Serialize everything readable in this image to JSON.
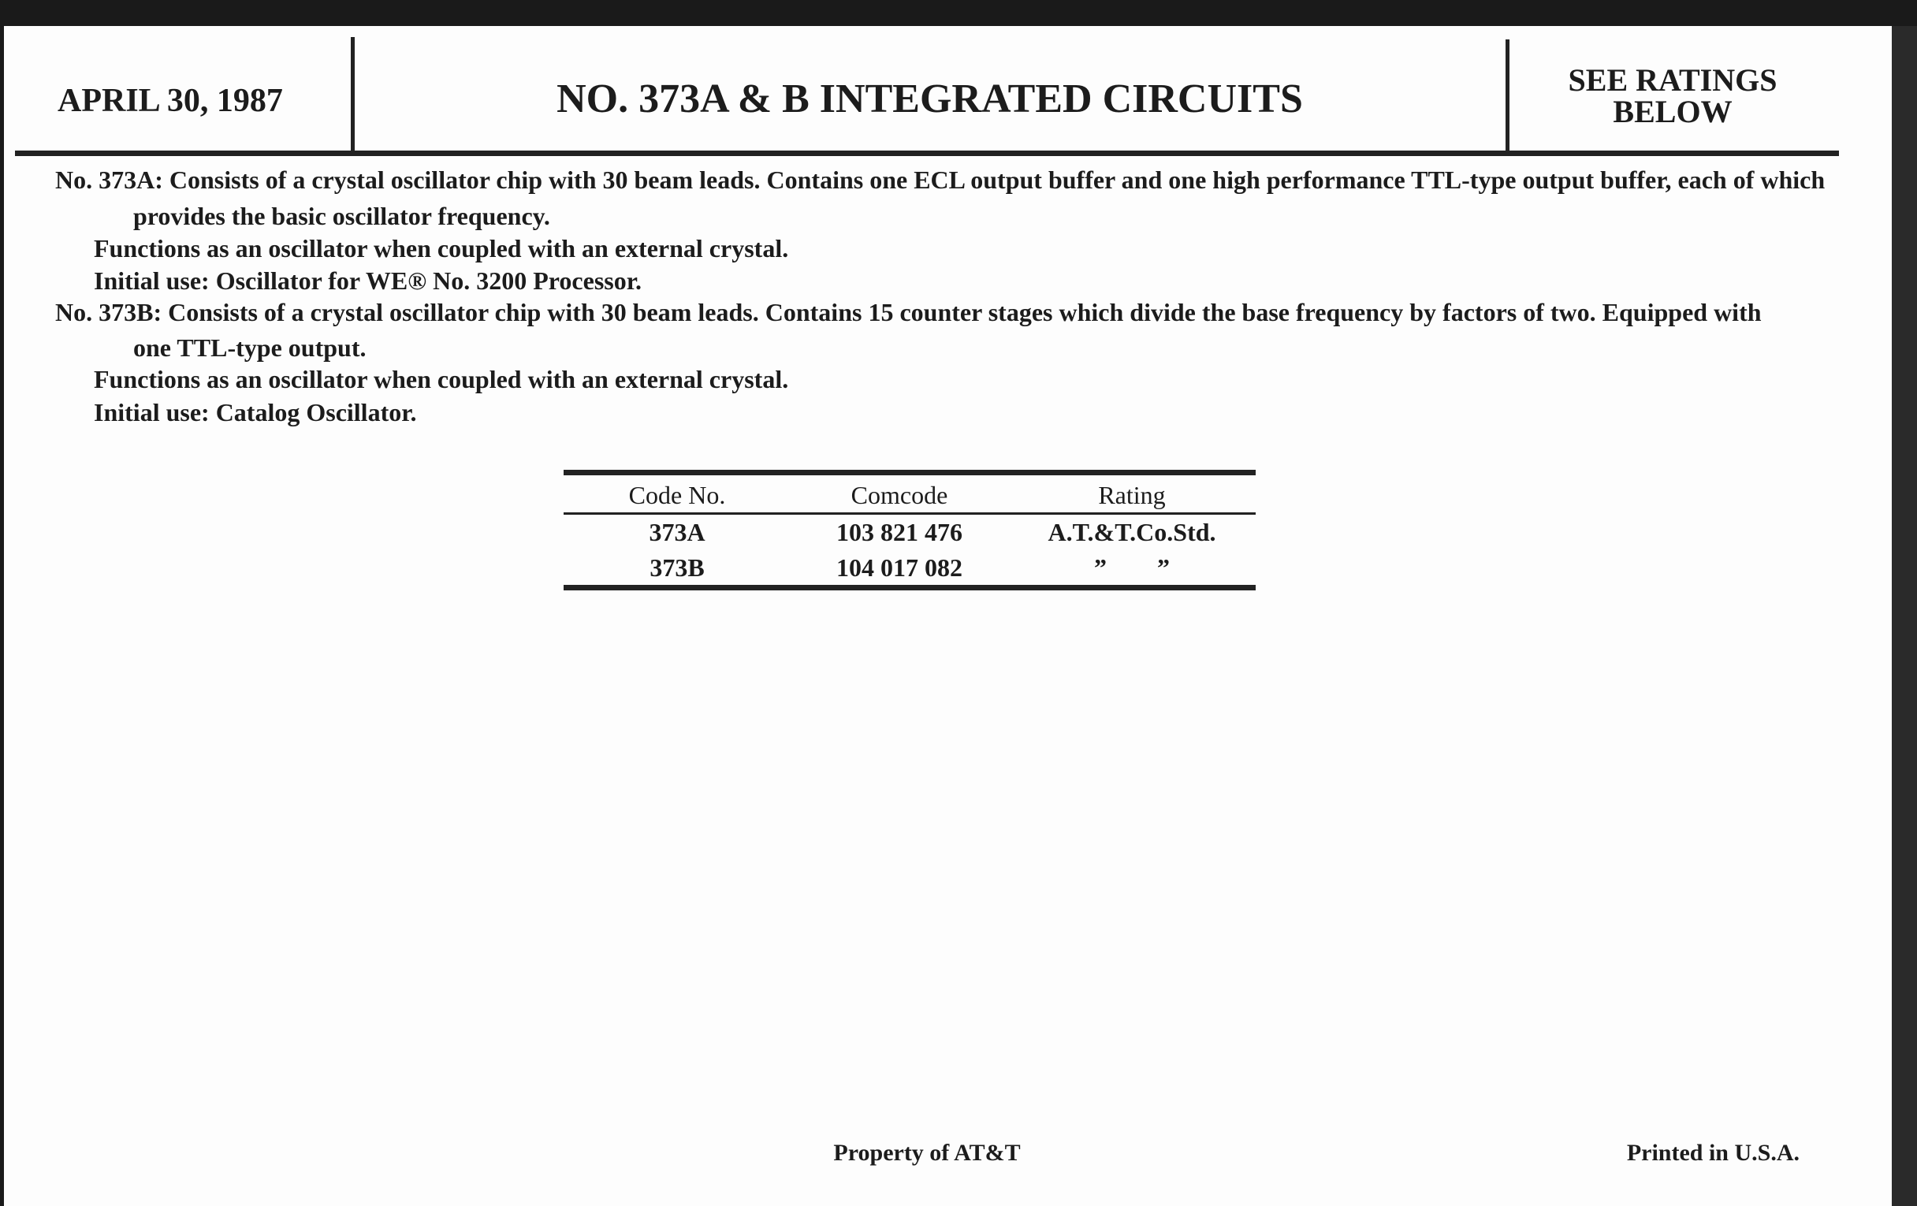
{
  "header": {
    "date": "APRIL 30, 1987",
    "title": "NO. 373A & B INTEGRATED CIRCUITS",
    "ratings_note_line1": "SEE RATINGS",
    "ratings_note_line2": "BELOW"
  },
  "body": {
    "lines": [
      "No. 373A: Consists of a crystal oscillator chip with 30 beam leads. Contains one ECL output buffer and one high performance TTL-type output buffer, each of which",
      "provides the basic oscillator frequency.",
      "Functions as an oscillator when coupled with an external crystal.",
      "Initial use: Oscillator for WE® No. 3200 Processor.",
      "No. 373B: Consists of a crystal oscillator chip with 30 beam leads. Contains 15 counter stages which divide the base frequency by factors of two. Equipped with",
      "one TTL-type output.",
      "Functions as an oscillator when coupled with an external crystal.",
      "Initial use: Catalog Oscillator."
    ]
  },
  "table": {
    "headers": [
      "Code No.",
      "Comcode",
      "Rating"
    ],
    "rows": [
      [
        "373A",
        "103 821 476",
        "A.T.&T.Co.Std."
      ],
      [
        "373B",
        "104 017 082",
        "”        ”"
      ]
    ]
  },
  "footer": {
    "property": "Property of AT&T",
    "printed": "Printed in U.S.A."
  }
}
